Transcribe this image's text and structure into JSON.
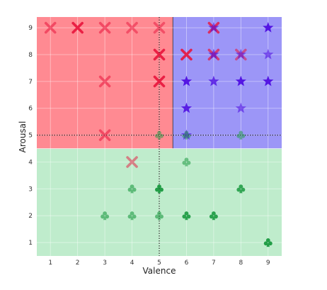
{
  "chart_data": {
    "type": "scatter",
    "title": "",
    "xlabel": "Valence",
    "ylabel": "Arousal",
    "xlim": [
      0.5,
      9.5
    ],
    "ylim": [
      0.5,
      9.4
    ],
    "xticks": [
      1,
      2,
      3,
      4,
      5,
      6,
      7,
      8,
      9
    ],
    "yticks": [
      1,
      2,
      3,
      4,
      5,
      6,
      7,
      8,
      9
    ],
    "grid": true,
    "regions": [
      {
        "name": "high-arousal-low-valence",
        "x": [
          0.5,
          5.5
        ],
        "y": [
          4.5,
          9.4
        ],
        "color": "#ff8a92"
      },
      {
        "name": "high-arousal-high-valence",
        "x": [
          5.5,
          9.5
        ],
        "y": [
          4.5,
          9.4
        ],
        "color": "#9c96f7"
      },
      {
        "name": "low-arousal",
        "x": [
          0.5,
          9.5
        ],
        "y": [
          0.5,
          4.5
        ],
        "color": "#bfeccc"
      }
    ],
    "reference_lines": [
      {
        "orientation": "vertical",
        "value": 5,
        "style": "dotted"
      },
      {
        "orientation": "horizontal",
        "value": 5,
        "style": "dotted"
      }
    ],
    "series": [
      {
        "marker": "cross",
        "color": "#e8143c",
        "points": [
          {
            "x": 1,
            "y": 9,
            "alpha": 0.55
          },
          {
            "x": 2,
            "y": 9,
            "alpha": 0.9
          },
          {
            "x": 3,
            "y": 9,
            "alpha": 0.55
          },
          {
            "x": 4,
            "y": 9,
            "alpha": 0.5
          },
          {
            "x": 5,
            "y": 9,
            "alpha": 0.5
          },
          {
            "x": 7,
            "y": 9,
            "alpha": 0.8
          },
          {
            "x": 5,
            "y": 8,
            "alpha": 0.9
          },
          {
            "x": 6,
            "y": 8,
            "alpha": 0.9
          },
          {
            "x": 7,
            "y": 8,
            "alpha": 0.7
          },
          {
            "x": 8,
            "y": 8,
            "alpha": 0.55
          },
          {
            "x": 3,
            "y": 7,
            "alpha": 0.55
          },
          {
            "x": 5,
            "y": 7,
            "alpha": 0.9
          },
          {
            "x": 3,
            "y": 5,
            "alpha": 0.55
          },
          {
            "x": 4,
            "y": 4,
            "alpha": 0.5
          }
        ]
      },
      {
        "marker": "star",
        "color": "#4a06e0",
        "points": [
          {
            "x": 7,
            "y": 9,
            "alpha": 0.55
          },
          {
            "x": 9,
            "y": 9,
            "alpha": 0.9
          },
          {
            "x": 7,
            "y": 8,
            "alpha": 0.6
          },
          {
            "x": 8,
            "y": 8,
            "alpha": 0.5
          },
          {
            "x": 9,
            "y": 8,
            "alpha": 0.55
          },
          {
            "x": 6,
            "y": 7,
            "alpha": 0.9
          },
          {
            "x": 7,
            "y": 7,
            "alpha": 0.75
          },
          {
            "x": 8,
            "y": 7,
            "alpha": 0.9
          },
          {
            "x": 9,
            "y": 7,
            "alpha": 0.9
          },
          {
            "x": 6,
            "y": 6,
            "alpha": 0.85
          },
          {
            "x": 8,
            "y": 6,
            "alpha": 0.55
          },
          {
            "x": 6,
            "y": 5,
            "alpha": 0.6
          }
        ]
      },
      {
        "marker": "club",
        "color": "#1a9a40",
        "points": [
          {
            "x": 5,
            "y": 5,
            "alpha": 0.5
          },
          {
            "x": 6,
            "y": 5,
            "alpha": 0.5
          },
          {
            "x": 8,
            "y": 5,
            "alpha": 0.5
          },
          {
            "x": 6,
            "y": 4,
            "alpha": 0.55
          },
          {
            "x": 4,
            "y": 3,
            "alpha": 0.6
          },
          {
            "x": 5,
            "y": 3,
            "alpha": 0.95
          },
          {
            "x": 8,
            "y": 3,
            "alpha": 0.85
          },
          {
            "x": 3,
            "y": 2,
            "alpha": 0.6
          },
          {
            "x": 4,
            "y": 2,
            "alpha": 0.6
          },
          {
            "x": 5,
            "y": 2,
            "alpha": 0.6
          },
          {
            "x": 6,
            "y": 2,
            "alpha": 0.9
          },
          {
            "x": 7,
            "y": 2,
            "alpha": 0.9
          },
          {
            "x": 9,
            "y": 1,
            "alpha": 0.95
          }
        ]
      }
    ]
  }
}
